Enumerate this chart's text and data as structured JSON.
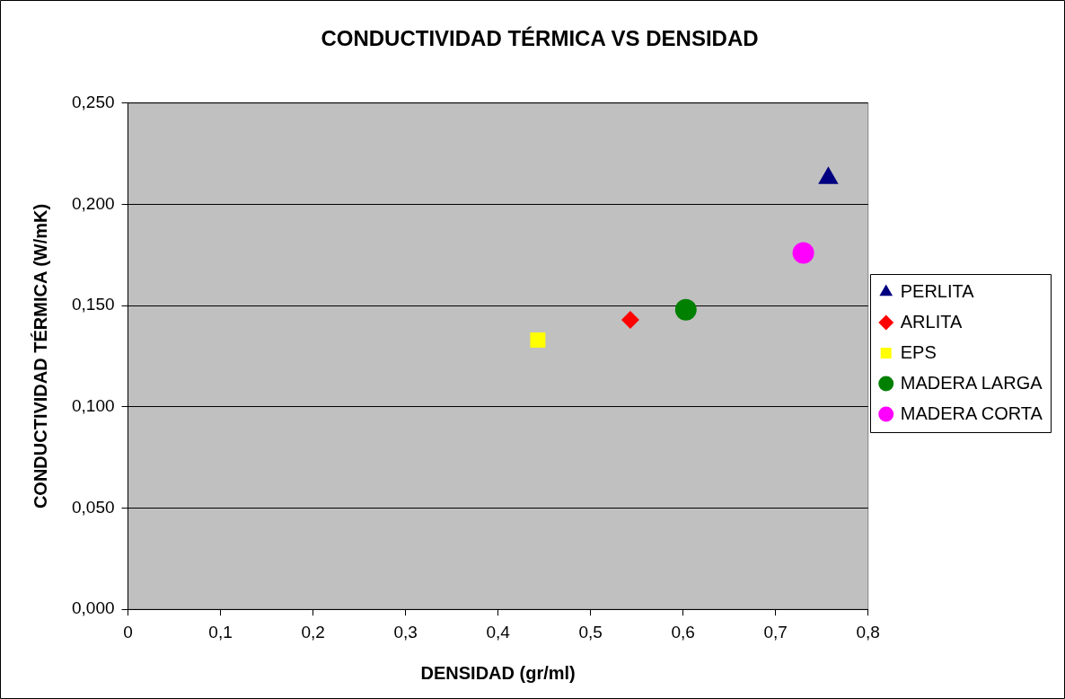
{
  "chart_data": {
    "type": "scatter",
    "title": "CONDUCTIVIDAD TÉRMICA VS DENSIDAD",
    "xlabel": "DENSIDAD (gr/ml)",
    "ylabel": "CONDUCTIVIDAD TÉRMICA (W/mK)",
    "series": [
      {
        "name": "PERLITA",
        "color": "#000080",
        "marker": "triangle",
        "x": [
          0.757
        ],
        "values": [
          0.213
        ]
      },
      {
        "name": "ARLITA",
        "color": "#ff0000",
        "marker": "diamond",
        "x": [
          0.543
        ],
        "values": [
          0.143
        ]
      },
      {
        "name": "EPS",
        "color": "#ffff00",
        "marker": "square",
        "x": [
          0.443
        ],
        "values": [
          0.133
        ]
      },
      {
        "name": "MADERA LARGA",
        "color": "#008000",
        "marker": "circle",
        "x": [
          0.603
        ],
        "values": [
          0.148
        ]
      },
      {
        "name": "MADERA CORTA",
        "color": "#ff00ff",
        "marker": "circle",
        "x": [
          0.73
        ],
        "values": [
          0.176
        ]
      }
    ],
    "xlim": [
      0,
      0.8
    ],
    "xticks": [
      0,
      {
        "value": 0.1,
        "label": "0,1"
      },
      {
        "value": 0.2,
        "label": "0,2"
      },
      {
        "value": 0.3,
        "label": "0,3"
      },
      {
        "value": 0.4,
        "label": "0,4"
      },
      {
        "value": 0.5,
        "label": "0,5"
      },
      {
        "value": 0.6,
        "label": "0,6"
      },
      {
        "value": 0.7,
        "label": "0,7"
      },
      {
        "value": 0.8,
        "label": "0,8"
      }
    ],
    "ylim": [
      0,
      0.25
    ],
    "yticks": [
      {
        "value": 0,
        "label": "0,000"
      },
      {
        "value": 0.05,
        "label": "0,050"
      },
      {
        "value": 0.1,
        "label": "0,100"
      },
      {
        "value": 0.15,
        "label": "0,150"
      },
      {
        "value": 0.2,
        "label": "0,200"
      },
      {
        "value": 0.25,
        "label": "0,250"
      }
    ],
    "grid": "y",
    "legend": "right"
  }
}
